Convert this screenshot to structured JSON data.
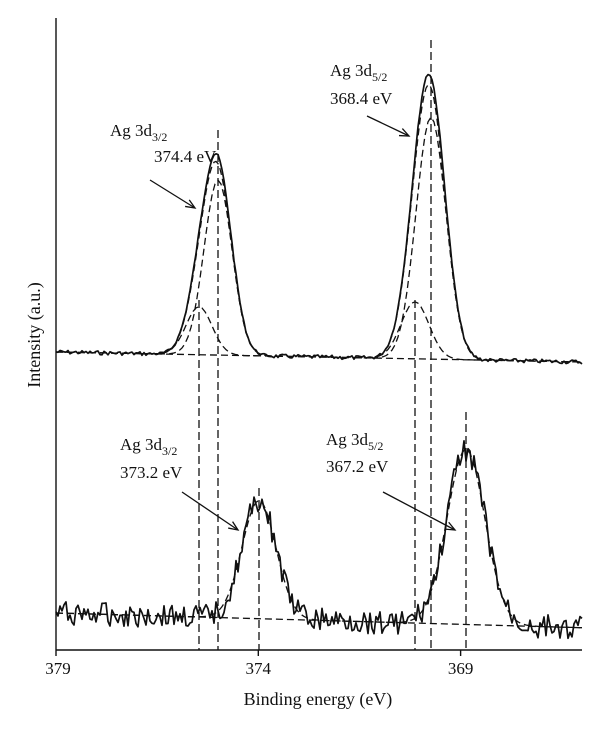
{
  "chart_data": {
    "type": "line",
    "xlabel": "Binding energy (eV)",
    "ylabel": "Intensity (a.u.)",
    "x_reversed": true,
    "xlim": [
      379,
      366
    ],
    "x_ticks": [
      379,
      374,
      369
    ],
    "x_tick_labels": [
      "379",
      "374",
      "369"
    ],
    "y_ticks_shown": false,
    "grid": false,
    "legend": "none",
    "panels": [
      {
        "position": "top",
        "peaks": [
          {
            "label": "Ag 3d",
            "subscript": "3/2",
            "energy_label": "374.4 eV",
            "center": 374.4
          },
          {
            "label": "Ag 3d",
            "subscript": "5/2",
            "energy_label": "368.4 eV",
            "center": 368.4
          }
        ],
        "fit_components": [
          {
            "center": 374.4,
            "height": 1.0
          },
          {
            "center": 375.2,
            "height": 0.23
          },
          {
            "center": 368.4,
            "height": 1.0
          },
          {
            "center": 369.8,
            "height": 0.25
          }
        ]
      },
      {
        "position": "bottom",
        "peaks": [
          {
            "label": "Ag 3d",
            "subscript": "3/2",
            "energy_label": "373.2 eV",
            "center": 373.2
          },
          {
            "label": "Ag 3d",
            "subscript": "5/2",
            "energy_label": "367.2 eV",
            "center": 367.2
          }
        ]
      }
    ]
  }
}
